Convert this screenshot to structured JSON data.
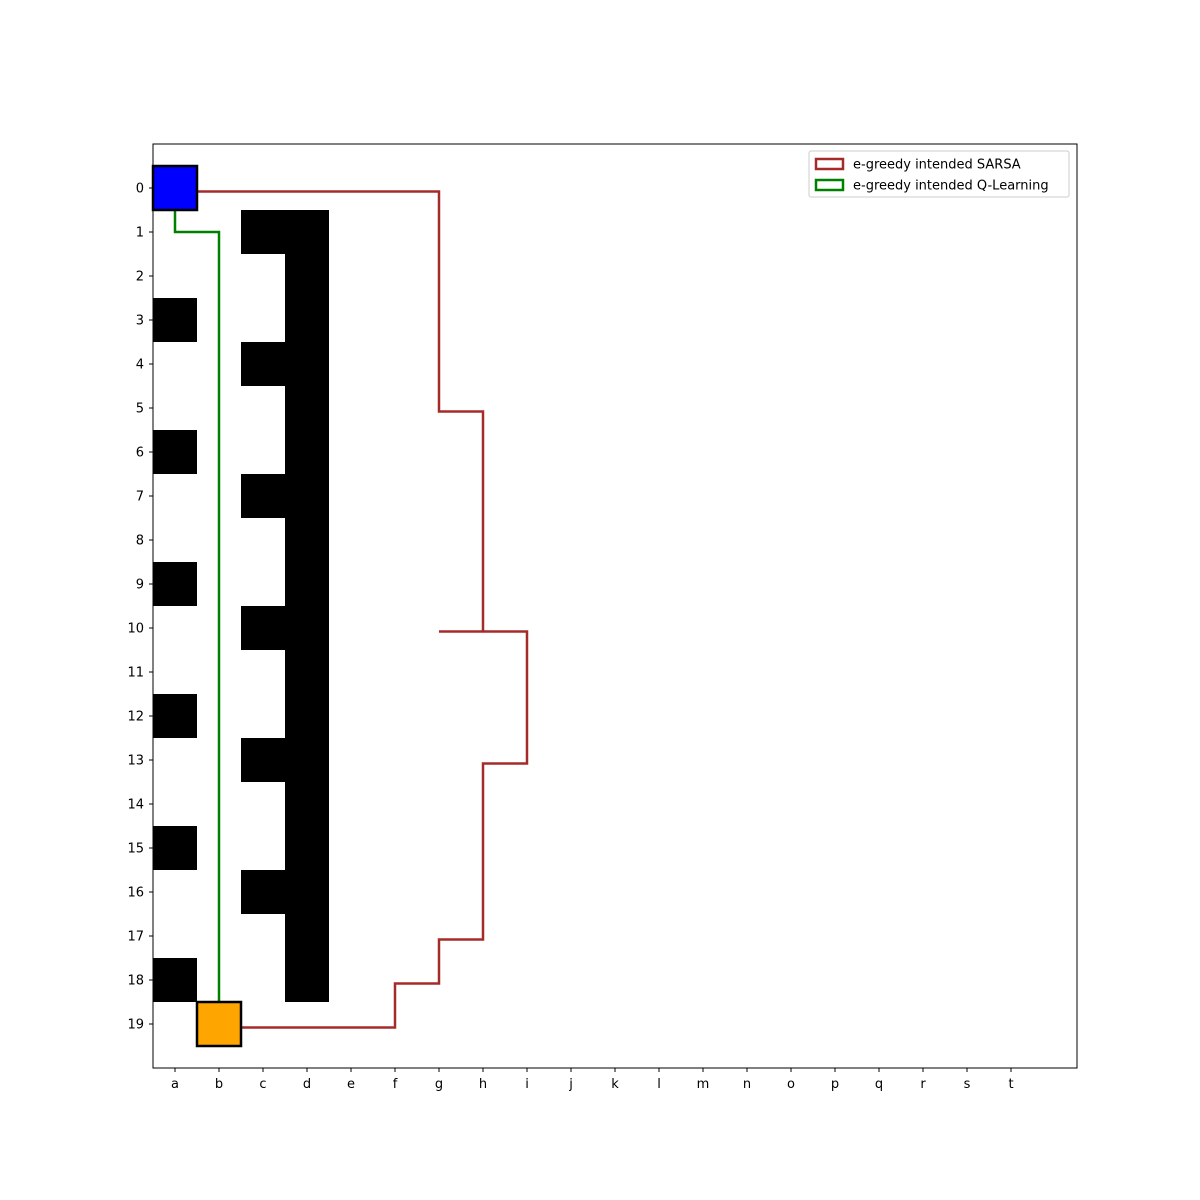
{
  "chart_data": {
    "type": "grid-path",
    "title": "",
    "xlabel": "",
    "ylabel": "",
    "x_ticks": [
      "a",
      "b",
      "c",
      "d",
      "e",
      "f",
      "g",
      "h",
      "i",
      "j",
      "k",
      "l",
      "m",
      "n",
      "o",
      "p",
      "q",
      "r",
      "s",
      "t"
    ],
    "y_ticks": [
      "0",
      "1",
      "2",
      "3",
      "4",
      "5",
      "6",
      "7",
      "8",
      "9",
      "10",
      "11",
      "12",
      "13",
      "14",
      "15",
      "16",
      "17",
      "18",
      "19"
    ],
    "xlim": [
      -0.5,
      20.5
    ],
    "ylim": [
      -1,
      20
    ],
    "y_inverted": true,
    "grid": false,
    "obstacles": [
      [
        0,
        3
      ],
      [
        0,
        6
      ],
      [
        0,
        9
      ],
      [
        0,
        12
      ],
      [
        0,
        15
      ],
      [
        0,
        18
      ],
      [
        2,
        1
      ],
      [
        2,
        4
      ],
      [
        2,
        7
      ],
      [
        2,
        10
      ],
      [
        2,
        13
      ],
      [
        2,
        16
      ],
      [
        3,
        1
      ],
      [
        3,
        2
      ],
      [
        3,
        3
      ],
      [
        3,
        4
      ],
      [
        3,
        5
      ],
      [
        3,
        6
      ],
      [
        3,
        7
      ],
      [
        3,
        8
      ],
      [
        3,
        9
      ],
      [
        3,
        10
      ],
      [
        3,
        11
      ],
      [
        3,
        12
      ],
      [
        3,
        13
      ],
      [
        3,
        14
      ],
      [
        3,
        15
      ],
      [
        3,
        16
      ],
      [
        3,
        17
      ],
      [
        3,
        18
      ]
    ],
    "start": {
      "cell": [
        0,
        0
      ],
      "color": "#0000ff"
    },
    "goal": {
      "cell": [
        1,
        19
      ],
      "color": "#ffa500"
    },
    "obstacle_color": "#000000",
    "legend_position": "top-right",
    "series": [
      {
        "name": "e-greedy intended SARSA",
        "color": "#a52a2a",
        "points": [
          [
            0,
            0
          ],
          [
            6,
            0
          ],
          [
            6,
            5
          ],
          [
            7,
            5
          ],
          [
            7,
            10
          ],
          [
            6,
            10
          ],
          [
            7,
            10
          ],
          [
            8,
            10
          ],
          [
            8,
            13
          ],
          [
            7,
            13
          ],
          [
            7,
            17
          ],
          [
            6,
            17
          ],
          [
            6,
            18
          ],
          [
            5,
            18
          ],
          [
            5,
            19
          ],
          [
            1,
            19
          ]
        ]
      },
      {
        "name": "e-greedy intended Q-Learning",
        "color": "#008000",
        "points": [
          [
            0,
            0
          ],
          [
            0,
            1
          ],
          [
            1,
            1
          ],
          [
            1,
            19
          ]
        ]
      }
    ]
  }
}
